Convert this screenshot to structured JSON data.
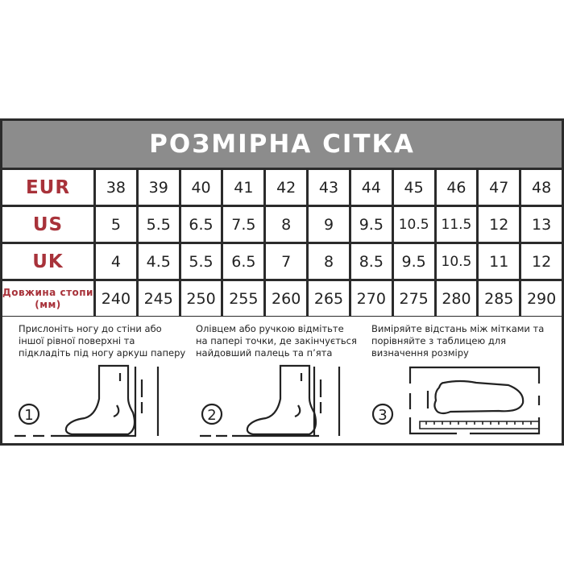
{
  "title": "РОЗМІРНА СІТКА",
  "rows": [
    {
      "label": "EUR",
      "values": [
        "38",
        "39",
        "40",
        "41",
        "42",
        "43",
        "44",
        "45",
        "46",
        "47",
        "48"
      ]
    },
    {
      "label": "US",
      "values": [
        "5",
        "5.5",
        "6.5",
        "7.5",
        "8",
        "9",
        "9.5",
        "10.5",
        "11.5",
        "12",
        "13"
      ]
    },
    {
      "label": "UK",
      "values": [
        "4",
        "4.5",
        "5.5",
        "6.5",
        "7",
        "8",
        "8.5",
        "9.5",
        "10.5",
        "11",
        "12"
      ]
    },
    {
      "label": "Довжина стопи (мм)",
      "values": [
        "240",
        "245",
        "250",
        "255",
        "260",
        "265",
        "270",
        "275",
        "280",
        "285",
        "290"
      ]
    }
  ],
  "steps": [
    {
      "number": "1",
      "text": "Прислоніть ногу до стіни або іншої рівної поверхні та підкладіть під ногу аркуш паперу"
    },
    {
      "number": "2",
      "text": "Олівцем або ручкою відмітьте на папері точки, де закінчується найдовший палець та п’ята"
    },
    {
      "number": "3",
      "text": "Виміряйте відстань між мітками та порівняйте з таблицею для визначення розміру"
    }
  ],
  "colors": {
    "label": "#a8323a",
    "header": "#8c8c8c",
    "border": "#2b2b2b"
  }
}
